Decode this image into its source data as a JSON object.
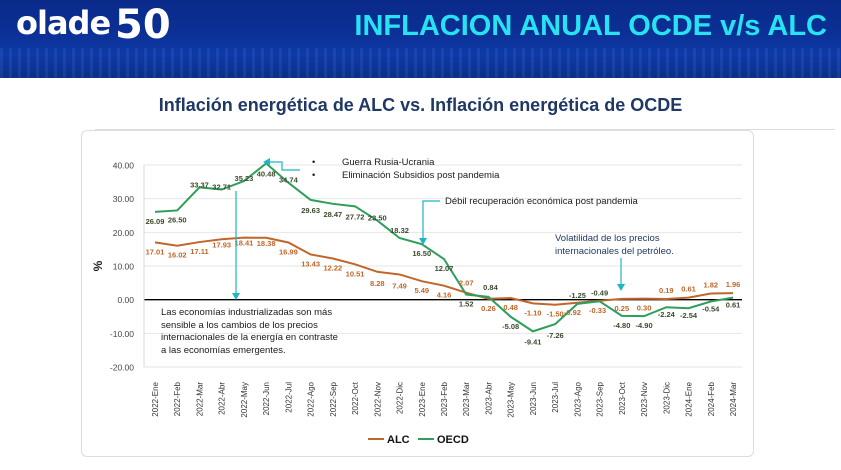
{
  "banner": {
    "logo_text": "olade",
    "logo_anniversary": "50",
    "title": "INFLACION ANUAL OCDE v/s ALC"
  },
  "subtitle": "Inflación energética de ALC vs. Inflación energética de OCDE",
  "annotations": {
    "war": [
      "Guerra Rusia-Ucrania",
      "Eliminación Subsidios post pandemia"
    ],
    "recovery": "Débil recuperación económica post pandemia",
    "volatility": "Volatilidad  de los precios internacionales del petróleo.",
    "industrialized": "Las economías industrializadas son más sensible a los cambios de los precios internacionales de la energía en contraste a las economías emergentes."
  },
  "chart_data": {
    "type": "line",
    "title": "Inflación energética de ALC vs. Inflación energética de OCDE",
    "xlabel": "",
    "ylabel": "%",
    "ylim": [
      -20,
      40
    ],
    "yticks": [
      "-20.00",
      "-10.00",
      "0.00",
      "10.00",
      "20.00",
      "30.00",
      "40.00"
    ],
    "ytick_values": [
      -20,
      -10,
      0,
      10,
      20,
      30,
      40
    ],
    "grid": true,
    "legend_position": "bottom",
    "categories": [
      "2022-Ene",
      "2022-Feb",
      "2022-Mar",
      "2022-Abr",
      "2022-May",
      "2022-Jun",
      "2022-Jul",
      "2022-Ago",
      "2022-Sep",
      "2022-Oct",
      "2022-Nov",
      "2022-Dic",
      "2023-Ene",
      "2023-Feb",
      "2023-Mar",
      "2023-Abr",
      "2023-May",
      "2023-Jun",
      "2023-Jul",
      "2023-Ago",
      "2023-Sep",
      "2023-Oct",
      "2023-Nov",
      "2023-Dic",
      "2024-Ene",
      "2024-Feb",
      "2024-Mar"
    ],
    "series": [
      {
        "name": "ALC",
        "color": "#c0662a",
        "values": [
          17.01,
          16.02,
          17.11,
          17.93,
          18.41,
          18.38,
          16.99,
          13.43,
          12.22,
          10.51,
          8.28,
          7.49,
          5.49,
          4.16,
          2.07,
          0.26,
          0.48,
          -1.1,
          -1.5,
          -0.92,
          -0.33,
          0.25,
          0.3,
          0.19,
          0.61,
          1.82,
          1.96
        ],
        "labels": [
          "17.01",
          "16.02",
          "17.11",
          "17.93",
          "18.41",
          "18.38",
          "16.99",
          "13.43",
          "12.22",
          "10.51",
          "8.28",
          "7.49",
          "5.49",
          "4.16",
          "2.07",
          "0.26",
          "0.48",
          "-1.10",
          "-1.50",
          "-0.92",
          "-0.33",
          "0.25",
          "0.30",
          "0.19",
          "0.61",
          "1.82",
          "1.96"
        ]
      },
      {
        "name": "OECD",
        "color": "#2e9e5b",
        "values": [
          26.09,
          26.5,
          33.37,
          32.71,
          35.23,
          40.48,
          34.74,
          29.63,
          28.47,
          27.72,
          23.5,
          18.32,
          16.5,
          12.07,
          1.52,
          0.84,
          -5.08,
          -9.41,
          -7.26,
          -1.25,
          -0.49,
          -4.8,
          -4.9,
          -2.24,
          -2.54,
          -0.54,
          0.61
        ],
        "labels": [
          "26.09",
          "26.50",
          "33.37",
          "32.71",
          "35.23",
          "40.48",
          "34.74",
          "29.63",
          "28.47",
          "27.72",
          "23.50",
          "18.32",
          "16.50",
          "12.07",
          "1.52",
          "0.84",
          "-5.08",
          "-9.41",
          "-7.26",
          "-1.25",
          "-0.49",
          "-4.80",
          "-4.90",
          "-2.24",
          "-2.54",
          "-0.54",
          "0.61"
        ]
      }
    ],
    "colors": {
      "label_alc": "#c0662a",
      "label_oecd": "#3a4a2a",
      "arrow": "#1fb5c4"
    }
  }
}
